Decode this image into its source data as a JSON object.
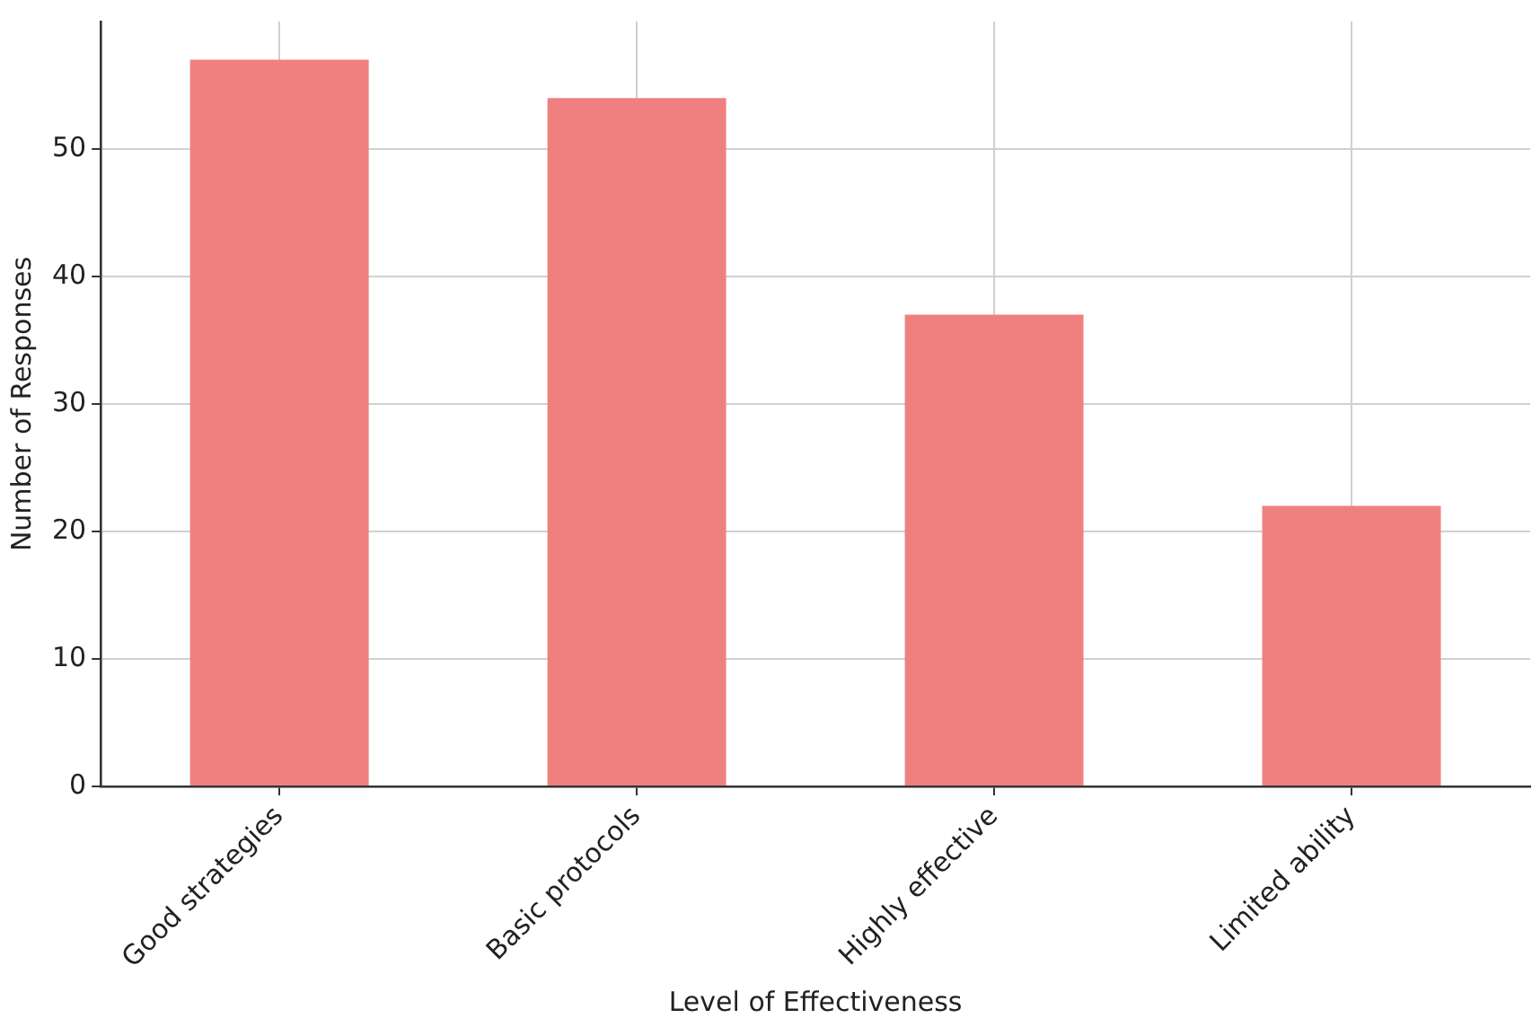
{
  "chart_data": {
    "type": "bar",
    "xlabel": "Level of Effectiveness",
    "ylabel": "Number of Responses",
    "categories": [
      "Good strategies",
      "Basic protocols",
      "Highly effective",
      "Limited ability"
    ],
    "values": [
      57,
      54,
      37,
      22
    ],
    "color": "#f08080",
    "ylim": [
      0,
      60
    ],
    "yticks": [
      0,
      10,
      20,
      30,
      40,
      50
    ],
    "grid": true
  }
}
